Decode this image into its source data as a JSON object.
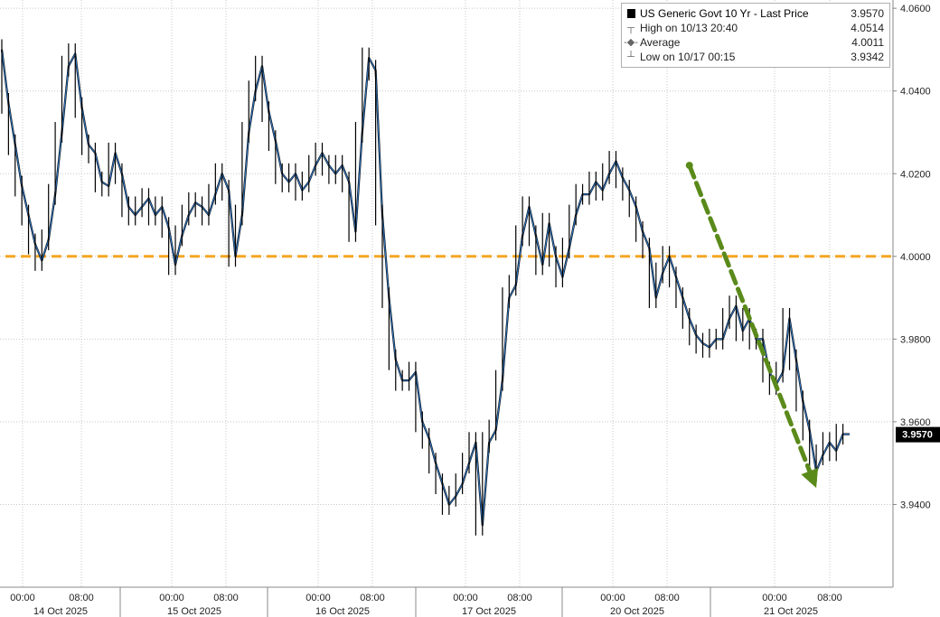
{
  "legend": {
    "series_name": "US Generic Govt 10 Yr - Last Price",
    "last_value": "3.9570",
    "high_label": "High on 10/13 20:40",
    "high_value": "4.0514",
    "average_label": "Average",
    "average_value": "4.0011",
    "low_label": "Low on 10/17 00:15",
    "low_value": "3.9342"
  },
  "last_price_tag": "3.9570",
  "chart_data": {
    "type": "line",
    "title": "",
    "xlabel": "",
    "ylabel": "",
    "ylim": [
      3.92,
      4.062
    ],
    "y_ticks": [
      "4.0600",
      "4.0400",
      "4.0200",
      "4.0000",
      "3.9800",
      "3.9600",
      "3.9400"
    ],
    "x_time_labels": [
      "00:00",
      "08:00",
      "00:00",
      "08:00",
      "00:00",
      "08:00",
      "00:00",
      "08:00",
      "00:00",
      "08:00",
      "00:00",
      "08:00"
    ],
    "x_date_labels": [
      "14 Oct 2025",
      "15 Oct 2025",
      "16 Oct 2025",
      "17 Oct 2025",
      "20 Oct 2025",
      "21 Oct 2025"
    ],
    "series": [
      {
        "values": [
          4.05,
          4.037,
          4.027,
          4.017,
          4.01,
          4.003,
          3.999,
          4.004,
          4.015,
          4.03,
          4.046,
          4.049,
          4.036,
          4.027,
          4.025,
          4.018,
          4.017,
          4.025,
          4.02,
          4.012,
          4.01,
          4.012,
          4.014,
          4.01,
          4.012,
          4.007,
          3.998,
          4.005,
          4.01,
          4.013,
          4.012,
          4.01,
          4.015,
          4.02,
          4.016,
          4.0,
          4.01,
          4.03,
          4.04,
          4.046,
          4.035,
          4.028,
          4.02,
          4.018,
          4.02,
          4.016,
          4.018,
          4.022,
          4.025,
          4.022,
          4.02,
          4.022,
          4.018,
          4.006,
          4.03,
          4.048,
          4.045,
          4.01,
          3.99,
          3.975,
          3.97,
          3.97,
          3.972,
          3.96,
          3.956,
          3.95,
          3.945,
          3.94,
          3.942,
          3.945,
          3.95,
          3.955,
          3.935,
          3.955,
          3.958,
          3.97,
          3.99,
          3.993,
          4.005,
          4.012,
          4.005,
          3.998,
          4.008,
          4.0,
          3.995,
          4.002,
          4.01,
          4.015,
          4.015,
          4.018,
          4.016,
          4.02,
          4.023,
          4.019,
          4.016,
          4.012,
          4.006,
          4.002,
          3.99,
          3.996,
          4.0,
          3.995,
          3.99,
          3.985,
          3.981,
          3.979,
          3.978,
          3.98,
          3.98,
          3.985,
          3.988,
          3.982,
          3.985,
          3.98,
          3.98,
          3.972,
          3.969,
          3.972,
          3.985,
          3.975,
          3.965,
          3.958,
          3.948,
          3.952,
          3.955,
          3.953,
          3.957,
          3.957
        ]
      }
    ],
    "annotations": [
      {
        "type": "horizontal-line",
        "y": 4.0,
        "style": "dashed",
        "color": "#f5a623"
      },
      {
        "type": "arrow",
        "from": [
          103,
          4.022
        ],
        "to": [
          122,
          3.944
        ],
        "style": "dashed",
        "color": "#5a8a1a"
      }
    ],
    "grid": true,
    "legend_position": "top-right",
    "colors": {
      "line_dark": "#000000",
      "line_blue": "#2f6fb5",
      "zero_line": "#f5a623",
      "arrow": "#5a8a1a"
    }
  }
}
